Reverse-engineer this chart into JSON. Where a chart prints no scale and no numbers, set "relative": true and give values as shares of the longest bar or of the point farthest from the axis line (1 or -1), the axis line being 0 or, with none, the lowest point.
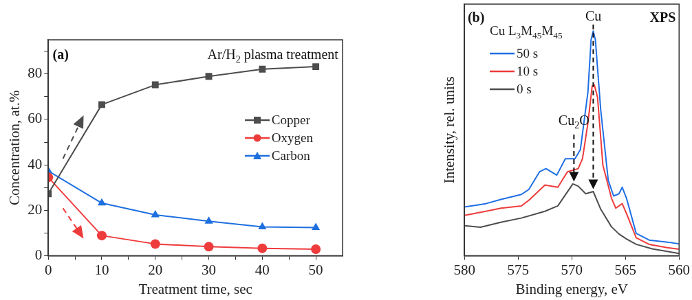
{
  "chart_data": [
    {
      "type": "line",
      "x": [
        0,
        10,
        20,
        30,
        40,
        50
      ],
      "xlabel": "Treatment time, sec",
      "ylabel": "Concentration, at.%",
      "xlim": [
        0,
        55
      ],
      "ylim": [
        0,
        95
      ],
      "xticks": [
        0,
        {
          "value": 5,
          "label": null
        },
        10,
        {
          "value": 15,
          "label": null
        },
        20,
        {
          "value": 25,
          "label": null
        },
        30,
        {
          "value": 35,
          "label": null
        },
        40,
        {
          "value": 45,
          "label": null
        },
        50
      ],
      "yticks": [
        0,
        {
          "value": 10,
          "label": null
        },
        20,
        {
          "value": 30,
          "label": null
        },
        40,
        {
          "value": 50,
          "label": null
        },
        60,
        {
          "value": 70,
          "label": null
        },
        80,
        {
          "value": 90,
          "label": null
        }
      ],
      "legend": "center right",
      "annotations": [
        "(a)",
        "Ar/H$_{2}$ plasma treatment"
      ],
      "series": [
        {
          "name": "Copper",
          "color": "#4d4d4d",
          "marker": "square",
          "values": [
            27.3,
            66.5,
            75.2,
            78.9,
            82.1,
            83.2
          ]
        },
        {
          "name": "Oxygen",
          "color": "#ee3b3b",
          "marker": "circle",
          "values": [
            34.5,
            8.9,
            5.2,
            4.0,
            3.3,
            2.9
          ]
        },
        {
          "name": "Carbon",
          "color": "#1e6fe0",
          "marker": "triangle",
          "values": [
            37.3,
            23.2,
            18.0,
            15.2,
            12.7,
            12.4
          ]
        }
      ]
    },
    {
      "type": "line",
      "relative": true,
      "xlabel": "Binding energy, eV",
      "ylabel": "Intensity, rel. units",
      "xlim": [
        580,
        560
      ],
      "xticks": [
        580,
        575,
        570,
        565,
        560
      ],
      "legend": "top left",
      "legend_title": "Cu L$_{3}$M$_{45}$M$_{45}$",
      "annotations": [
        "(b)",
        "XPS",
        "Cu",
        "Cu$_{2}$O"
      ],
      "series": [
        {
          "name": "50 s",
          "color": "#1f6fe5",
          "x": [
            580,
            578,
            576.6,
            574.7,
            574,
            573,
            572.4,
            571.4,
            570.6,
            569.7,
            569.2,
            568.5,
            568.2,
            568.0,
            567.8,
            567.3,
            566.6,
            566.1,
            565.6,
            565.3,
            564.9,
            564.0,
            562.8,
            561.1,
            560
          ],
          "values": [
            0.217,
            0.232,
            0.251,
            0.273,
            0.295,
            0.374,
            0.388,
            0.359,
            0.432,
            0.432,
            0.472,
            0.726,
            0.961,
            1.0,
            0.961,
            0.648,
            0.335,
            0.266,
            0.276,
            0.305,
            0.256,
            0.1,
            0.07,
            0.061,
            0.053
          ]
        },
        {
          "name": "10 s",
          "color": "#ee3b3b",
          "x": [
            580,
            578,
            576.6,
            574.7,
            574,
            572.5,
            571.3,
            570.4,
            569.4,
            569.0,
            568.5,
            568.1,
            567.9,
            567.6,
            567.1,
            566.3,
            565.9,
            565.3,
            564.9,
            564.0,
            562.8,
            561.1,
            560
          ],
          "values": [
            0.18,
            0.198,
            0.212,
            0.222,
            0.247,
            0.315,
            0.305,
            0.374,
            0.388,
            0.432,
            0.589,
            0.755,
            0.76,
            0.706,
            0.403,
            0.256,
            0.212,
            0.232,
            0.188,
            0.08,
            0.051,
            0.036,
            0.029
          ]
        },
        {
          "name": "0 s",
          "color": "#4d4d4d",
          "x": [
            580,
            578.5,
            576.6,
            574.7,
            572.5,
            571.3,
            570.6,
            569.9,
            569.4,
            568.7,
            568.0,
            567.3,
            566.3,
            565.6,
            564.9,
            564.0,
            562.5,
            560
          ],
          "values": [
            0.134,
            0.127,
            0.149,
            0.168,
            0.198,
            0.222,
            0.271,
            0.32,
            0.31,
            0.276,
            0.286,
            0.207,
            0.129,
            0.097,
            0.075,
            0.051,
            0.031,
            0.01
          ]
        }
      ]
    }
  ]
}
